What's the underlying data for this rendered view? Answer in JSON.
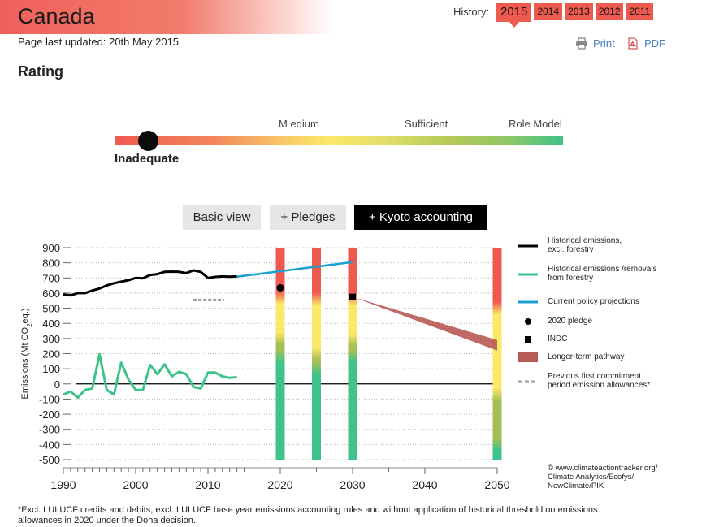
{
  "header": {
    "country": "Canada",
    "updated": "Page last updated: 20th May 2015",
    "history_label": "History:",
    "history_years": [
      "2015",
      "2014",
      "2013",
      "2012",
      "2011"
    ],
    "active_year": "2015",
    "print_label": "Print",
    "pdf_label": "PDF"
  },
  "rating": {
    "heading": "Rating",
    "scale_labels": {
      "medium": "M edium",
      "sufficient": "Sufficient",
      "role_model": "Role Model"
    },
    "value": "Inadequate"
  },
  "views": {
    "basic": "Basic view",
    "pledges": "+ Pledges",
    "kyoto": "+ Kyoto accounting"
  },
  "colors": {
    "brand_red": "#ef5a50",
    "historical": "#000000",
    "forestry": "#3ec48a",
    "policy": "#1ba1d0",
    "pathway": "#b85a55",
    "allowance": "#999999",
    "bar_red": "#ef5a50",
    "bar_yellow": "#fbe869",
    "bar_olive": "#a5bf56",
    "bar_green": "#3ec48a"
  },
  "chart_data": {
    "type": "line",
    "ylabel": "Emissions (Mt CO2eq.)",
    "ylabel_parts": {
      "main": "Emissions (Mt CO",
      "sub": "2",
      "tail": "eq.)"
    },
    "ylim": [
      -500,
      900
    ],
    "xlim": [
      1990,
      2050
    ],
    "yticks": [
      900,
      800,
      700,
      600,
      500,
      400,
      300,
      200,
      100,
      0,
      -100,
      -200,
      -300,
      -400,
      -500
    ],
    "xticks": [
      1990,
      2000,
      2010,
      2020,
      2030,
      2040,
      2050
    ],
    "series": [
      {
        "name": "Historical emissions, excl. forestry",
        "years": [
          1990,
          1991,
          1992,
          1993,
          1994,
          1995,
          1996,
          1997,
          1998,
          1999,
          2000,
          2001,
          2002,
          2003,
          2004,
          2005,
          2006,
          2007,
          2008,
          2009,
          2010,
          2011,
          2012,
          2013,
          2014
        ],
        "values": [
          590,
          585,
          600,
          600,
          617,
          630,
          650,
          665,
          675,
          685,
          700,
          698,
          720,
          725,
          740,
          742,
          740,
          732,
          750,
          740,
          700,
          707,
          710,
          708,
          710
        ]
      },
      {
        "name": "Historical emissions /removals from forestry",
        "years": [
          1990,
          1991,
          1992,
          1993,
          1994,
          1995,
          1996,
          1997,
          1998,
          1999,
          2000,
          2001,
          2002,
          2003,
          2004,
          2005,
          2006,
          2007,
          2008,
          2009,
          2010,
          2011,
          2012,
          2013,
          2014
        ],
        "values": [
          -70,
          -50,
          -90,
          -40,
          -30,
          195,
          -40,
          -70,
          140,
          30,
          -40,
          -40,
          125,
          65,
          130,
          50,
          80,
          65,
          -20,
          -30,
          75,
          75,
          50,
          40,
          45
        ]
      },
      {
        "name": "Current policy projections",
        "years": [
          2014,
          2030
        ],
        "values": [
          708,
          805
        ]
      }
    ],
    "pledge_2020": {
      "year": 2020,
      "value": 635
    },
    "indc": {
      "year": 2030,
      "value": 575
    },
    "pathway": {
      "start_year": 2030,
      "start_value": 575,
      "end_year": 2050,
      "upper": 290,
      "lower": 220
    },
    "allowance": {
      "year_start": 2008,
      "year_end": 2012,
      "value": 555
    },
    "rating_bars": [
      {
        "year": 2020,
        "bands": [
          [
            900,
            570,
            "red"
          ],
          [
            570,
            300,
            "yellow"
          ],
          [
            300,
            180,
            "olive"
          ],
          [
            180,
            -500,
            "green"
          ]
        ]
      },
      {
        "year": 2025,
        "bands": [
          [
            900,
            560,
            "red"
          ],
          [
            560,
            200,
            "yellow"
          ],
          [
            200,
            100,
            "olive"
          ],
          [
            100,
            -500,
            "green"
          ]
        ]
      },
      {
        "year": 2030,
        "bands": [
          [
            900,
            560,
            "red"
          ],
          [
            560,
            290,
            "yellow"
          ],
          [
            290,
            180,
            "olive"
          ],
          [
            180,
            -500,
            "green"
          ]
        ]
      },
      {
        "year": 2050,
        "bands": [
          [
            900,
            500,
            "red"
          ],
          [
            500,
            -70,
            "yellow"
          ],
          [
            -70,
            -400,
            "olive"
          ],
          [
            -400,
            -500,
            "green"
          ]
        ]
      }
    ],
    "legend": [
      {
        "label": "Historical emissions,\nexcl. forestry",
        "kind": "line-black"
      },
      {
        "label": "Historical emissions /removals\nfrom forestry",
        "kind": "line-green"
      },
      {
        "label": "Current policy projections",
        "kind": "line-blue"
      },
      {
        "label": "2020 pledge",
        "kind": "dot"
      },
      {
        "label": "INDC",
        "kind": "square"
      },
      {
        "label": "Longer-term pathway",
        "kind": "swatch"
      },
      {
        "label": "Previous first commitment\nperiod emission allowances*",
        "kind": "dash"
      }
    ],
    "legend_placement": "right",
    "credit": "© www.climateactiontracker.org/\nClimate Analytics/Ecofys/\nNewClimate/PIK"
  },
  "footnote": "*Excl. LULUCF credits and debits, excl. LULUCF base year emissions accounting rules and without application of historical threshold on emissions allowances in 2020 under the Doha decision."
}
